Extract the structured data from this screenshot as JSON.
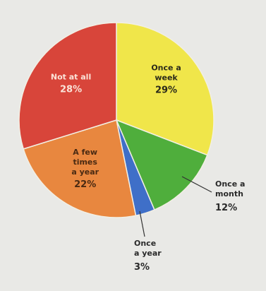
{
  "chart_data": {
    "type": "pie",
    "title": "",
    "slices": [
      {
        "label_lines": [
          "Once a",
          "week"
        ],
        "pct_label": "29%",
        "value": 29,
        "color": "#f0e64a",
        "text_color": "#2a2a1a",
        "label_inside": true
      },
      {
        "label_lines": [
          "Once a",
          "month"
        ],
        "pct_label": "12%",
        "value": 12,
        "color": "#4fae3c",
        "text_color": "#2a2a2a",
        "label_inside": false
      },
      {
        "label_lines": [
          "Once",
          "a year"
        ],
        "pct_label": "3%",
        "value": 3,
        "color": "#3f6fc8",
        "text_color": "#2a2a2a",
        "label_inside": false
      },
      {
        "label_lines": [
          "A few",
          "times",
          "a year"
        ],
        "pct_label": "22%",
        "value": 22,
        "color": "#e8873f",
        "text_color": "#4a2a12",
        "label_inside": true
      },
      {
        "label_lines": [
          "Not at all"
        ],
        "pct_label": "28%",
        "value": 28,
        "color": "#d8453a",
        "text_color": "#fbe3d8",
        "label_inside": true
      }
    ]
  }
}
